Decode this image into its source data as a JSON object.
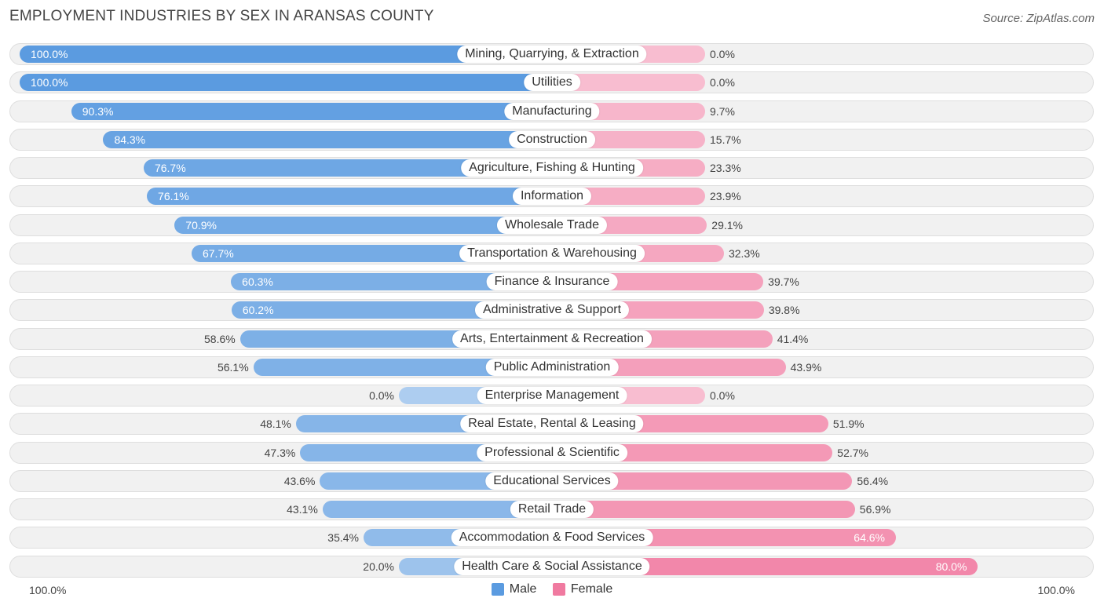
{
  "chart_data": {
    "type": "bar",
    "orientation": "horizontal-diverging",
    "title": "EMPLOYMENT INDUSTRIES BY SEX IN ARANSAS COUNTY",
    "source": "Source: ZipAtlas.com",
    "categories": [
      "Mining, Quarrying, & Extraction",
      "Utilities",
      "Manufacturing",
      "Construction",
      "Agriculture, Fishing & Hunting",
      "Information",
      "Wholesale Trade",
      "Transportation & Warehousing",
      "Finance & Insurance",
      "Administrative & Support",
      "Arts, Entertainment & Recreation",
      "Public Administration",
      "Enterprise Management",
      "Real Estate, Rental & Leasing",
      "Professional & Scientific",
      "Educational Services",
      "Retail Trade",
      "Accommodation & Food Services",
      "Health Care & Social Assistance"
    ],
    "series": [
      {
        "name": "Male",
        "color": "#5b9be0",
        "values": [
          100.0,
          100.0,
          90.3,
          84.3,
          76.7,
          76.1,
          70.9,
          67.7,
          60.3,
          60.2,
          58.6,
          56.1,
          0.0,
          48.1,
          47.3,
          43.6,
          43.1,
          35.4,
          20.0
        ],
        "labels": [
          "100.0%",
          "100.0%",
          "90.3%",
          "84.3%",
          "76.7%",
          "76.1%",
          "70.9%",
          "67.7%",
          "60.3%",
          "60.2%",
          "58.6%",
          "56.1%",
          "0.0%",
          "48.1%",
          "47.3%",
          "43.6%",
          "43.1%",
          "35.4%",
          "20.0%"
        ]
      },
      {
        "name": "Female",
        "color": "#f07aa0",
        "values": [
          0.0,
          0.0,
          9.7,
          15.7,
          23.3,
          23.9,
          29.1,
          32.3,
          39.7,
          39.8,
          41.4,
          43.9,
          0.0,
          51.9,
          52.7,
          56.4,
          56.9,
          64.6,
          80.0
        ],
        "labels": [
          "0.0%",
          "0.0%",
          "9.7%",
          "15.7%",
          "23.3%",
          "23.9%",
          "29.1%",
          "32.3%",
          "39.7%",
          "39.8%",
          "41.4%",
          "43.9%",
          "0.0%",
          "51.9%",
          "52.7%",
          "56.4%",
          "56.9%",
          "64.6%",
          "80.0%"
        ]
      }
    ],
    "xlim": [
      -100,
      100
    ],
    "axis_left_label": "100.0%",
    "axis_right_label": "100.0%",
    "legend": [
      "Male",
      "Female"
    ],
    "legend_position": "bottom-center"
  }
}
